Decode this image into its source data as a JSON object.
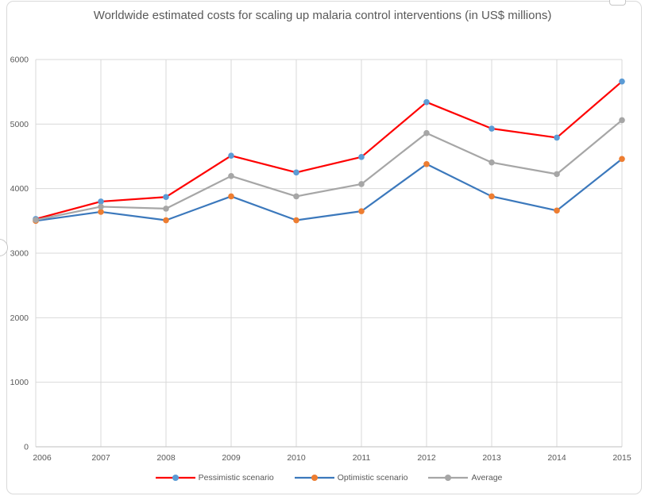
{
  "title": "Worldwide estimated costs for scaling up malaria control interventions (in US$ millions)",
  "theme": {
    "text_color": "#595959",
    "gridline_color": "#D9D9D9",
    "axis_line_color": "#BFBFBF",
    "border_color": "#D9D9D9",
    "background": "#FFFFFF"
  },
  "chart_data": {
    "type": "line",
    "title": "Worldwide estimated costs for scaling up malaria control interventions (in US$ millions)",
    "categories": [
      "2006",
      "2007",
      "2008",
      "2009",
      "2010",
      "2011",
      "2012",
      "2013",
      "2014",
      "2015"
    ],
    "series": [
      {
        "name": "Pessimistic scenario",
        "line_color": "#FE0000",
        "marker_color": "#5B9BD5",
        "values": [
          3530,
          3800,
          3870,
          4510,
          4250,
          4490,
          5340,
          4930,
          4790,
          5660
        ]
      },
      {
        "name": "Optimistic scenario",
        "line_color": "#3B78BC",
        "marker_color": "#ED7D31",
        "values": [
          3500,
          3640,
          3510,
          3880,
          3510,
          3650,
          4380,
          3880,
          3660,
          4460
        ]
      },
      {
        "name": "Average",
        "line_color": "#A6A6A6",
        "marker_color": "#A6A6A6",
        "values": [
          3515,
          3720,
          3690,
          4195,
          3880,
          4070,
          4860,
          4405,
          4225,
          5060
        ]
      }
    ],
    "xlabel": "",
    "ylabel": "",
    "ylim": [
      0,
      6000
    ],
    "yticks": [
      0,
      1000,
      2000,
      3000,
      4000,
      5000,
      6000
    ],
    "grid": true,
    "legend_position": "bottom"
  }
}
